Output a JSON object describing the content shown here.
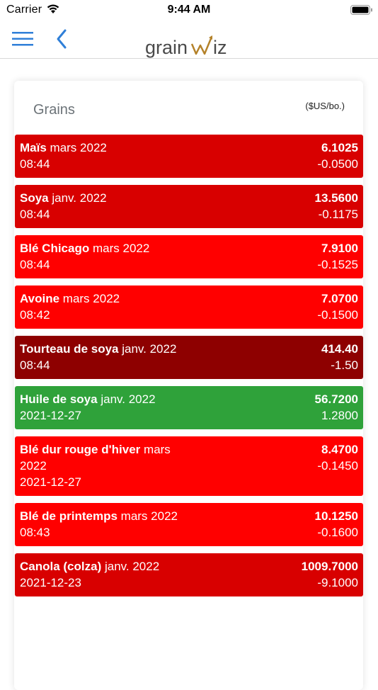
{
  "status_bar": {
    "carrier": "Carrier",
    "time": "9:44 AM"
  },
  "nav": {
    "logo_text_a": "grain",
    "logo_text_b": "WIZ"
  },
  "card": {
    "title": "Grains",
    "unit": "($US/bo.)"
  },
  "colors": {
    "down": "#ff0000",
    "down_dark": "#d80000",
    "down_darker": "#8e0000",
    "up": "#2fa23a",
    "brand_gold": "#b4822a"
  },
  "rows": [
    {
      "name": "Maïs",
      "contract": "mars 2022",
      "time": "08:44",
      "price": "6.1025",
      "change": "-0.0500",
      "color": "#d80000"
    },
    {
      "name": "Soya",
      "contract": "janv. 2022",
      "time": "08:44",
      "price": "13.5600",
      "change": "-0.1175",
      "color": "#d80000"
    },
    {
      "name": "Blé Chicago",
      "contract": "mars 2022",
      "time": "08:44",
      "price": "7.9100",
      "change": "-0.1525",
      "color": "#ff0000"
    },
    {
      "name": "Avoine",
      "contract": "mars 2022",
      "time": "08:42",
      "price": "7.0700",
      "change": "-0.1500",
      "color": "#ff0000"
    },
    {
      "name": "Tourteau de soya",
      "contract": "janv. 2022",
      "time": "08:44",
      "price": "414.40",
      "change": "-1.50",
      "color": "#8e0000"
    },
    {
      "name": "Huile de soya",
      "contract": "janv. 2022",
      "time": "2021-12-27",
      "price": "56.7200",
      "change": "1.2800",
      "color": "#2fa23a"
    },
    {
      "name": "Blé dur rouge d'hiver",
      "contract": "mars 2022",
      "time": "2021-12-27",
      "price": "8.4700",
      "change": "-0.1450",
      "color": "#ff0000"
    },
    {
      "name": "Blé de printemps",
      "contract": "mars 2022",
      "time": "08:43",
      "price": "10.1250",
      "change": "-0.1600",
      "color": "#ff0000"
    },
    {
      "name": "Canola (colza)",
      "contract": "janv. 2022",
      "time": "2021-12-23",
      "price": "1009.7000",
      "change": "-9.1000",
      "color": "#d80000"
    }
  ]
}
